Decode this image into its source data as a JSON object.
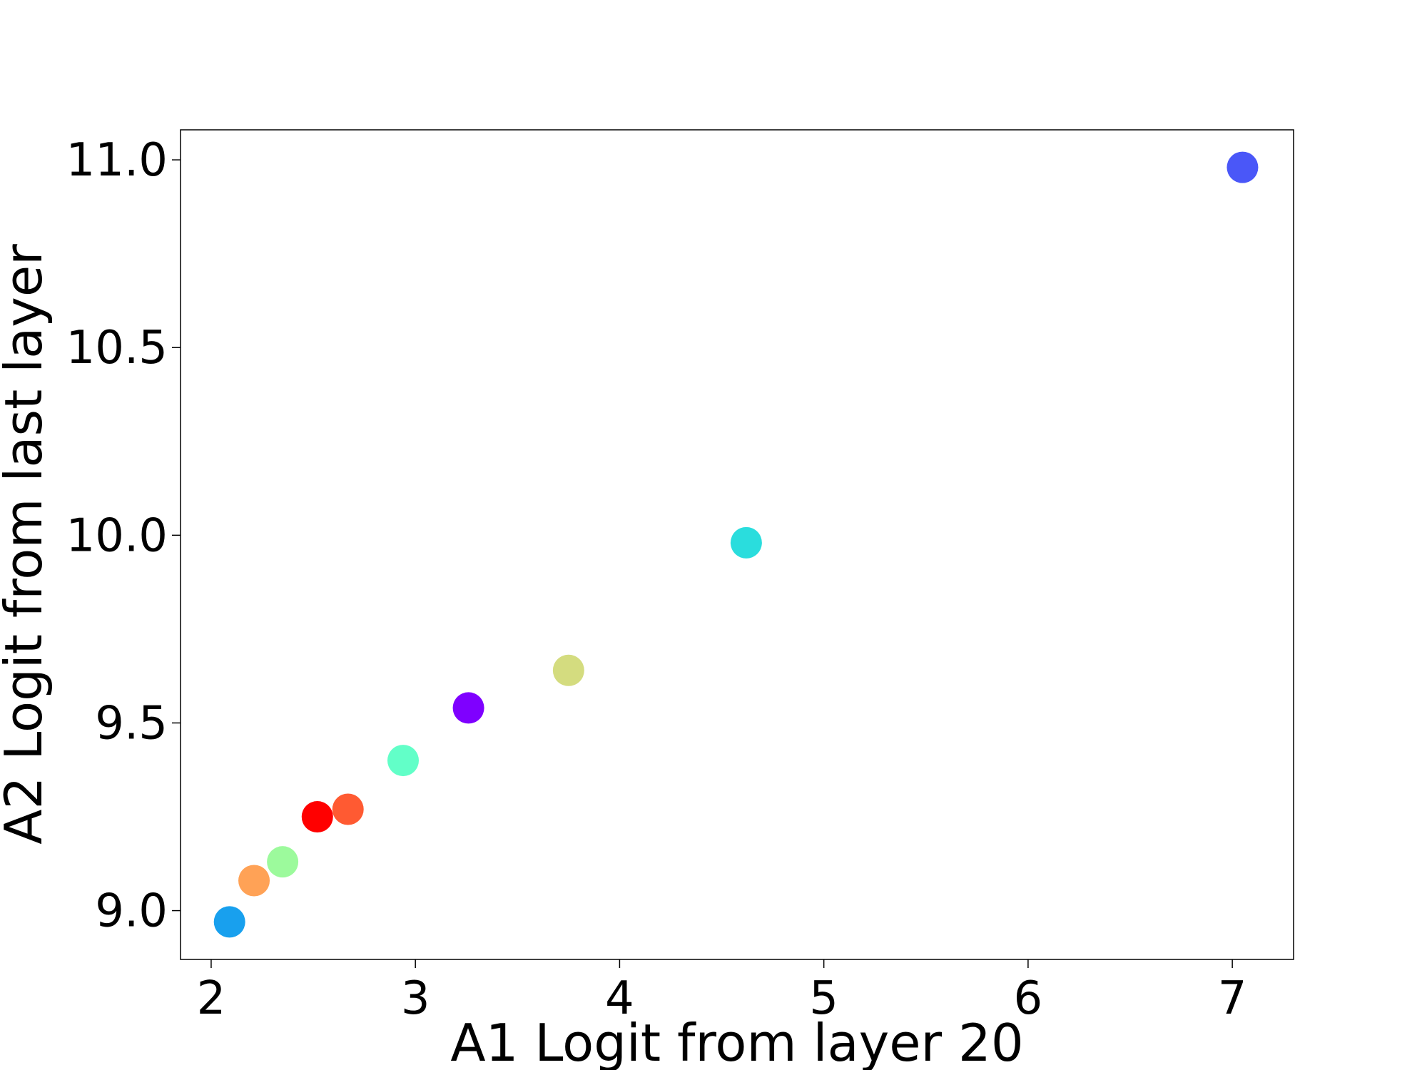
{
  "chart_data": {
    "type": "scatter",
    "xlabel": "A1 Logit from layer 20",
    "ylabel": "A2 Logit from last layer",
    "xlim": [
      1.85,
      7.3
    ],
    "ylim": [
      8.87,
      11.08
    ],
    "xticks": [
      2,
      3,
      4,
      5,
      6,
      7
    ],
    "yticks": [
      9.0,
      9.5,
      10.0,
      10.5,
      11.0
    ],
    "xtick_labels": [
      "2",
      "3",
      "4",
      "5",
      "6",
      "7"
    ],
    "ytick_labels": [
      "9.0",
      "9.5",
      "10.0",
      "10.5",
      "11.0"
    ],
    "grid": false,
    "points": [
      {
        "x": 2.09,
        "y": 8.97,
        "color": "#18a0ee"
      },
      {
        "x": 2.21,
        "y": 9.08,
        "color": "#ffa256"
      },
      {
        "x": 2.35,
        "y": 9.13,
        "color": "#9cfa9c"
      },
      {
        "x": 2.52,
        "y": 9.25,
        "color": "#ff0000"
      },
      {
        "x": 2.67,
        "y": 9.27,
        "color": "#ff5a32"
      },
      {
        "x": 2.94,
        "y": 9.4,
        "color": "#62ffc8"
      },
      {
        "x": 3.26,
        "y": 9.54,
        "color": "#7f00ff"
      },
      {
        "x": 3.75,
        "y": 9.64,
        "color": "#d4dc7f"
      },
      {
        "x": 4.62,
        "y": 9.98,
        "color": "#2adddd"
      },
      {
        "x": 7.05,
        "y": 10.98,
        "color": "#4a57f8"
      }
    ]
  }
}
